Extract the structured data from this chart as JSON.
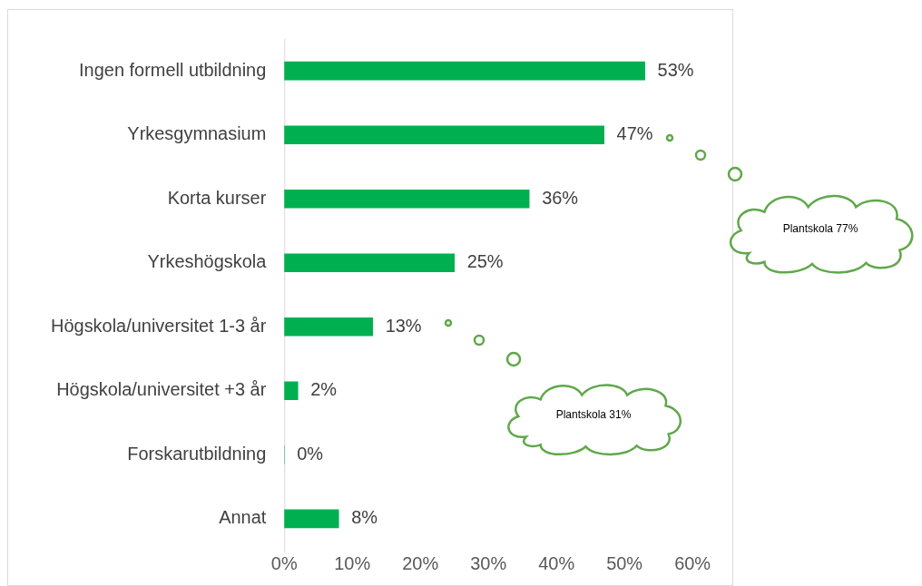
{
  "chart_data": {
    "type": "bar",
    "orientation": "horizontal",
    "categories": [
      "Ingen formell utbildning",
      "Yrkesgymnasium",
      "Korta kurser",
      "Yrkeshögskola",
      "Högskola/universitet 1-3 år",
      "Högskola/universitet +3 år",
      "Forskarutbildning",
      "Annat"
    ],
    "values": [
      53,
      47,
      36,
      25,
      13,
      2,
      0,
      8
    ],
    "value_labels": [
      "53%",
      "47%",
      "36%",
      "25%",
      "13%",
      "2%",
      "0%",
      "8%"
    ],
    "color": "#00b050",
    "xlim": [
      0,
      60
    ],
    "xticks": [
      {
        "value": 0,
        "label": "0%"
      },
      {
        "value": 10,
        "label": "10%"
      },
      {
        "value": 20,
        "label": "20%"
      },
      {
        "value": 30,
        "label": "30%"
      },
      {
        "value": 40,
        "label": "40%"
      },
      {
        "value": 50,
        "label": "50%"
      },
      {
        "value": 60,
        "label": "60%"
      }
    ],
    "grid": false,
    "legend": false,
    "annotations": [
      "Plantskola 77%",
      "Plantskola 31%"
    ]
  }
}
